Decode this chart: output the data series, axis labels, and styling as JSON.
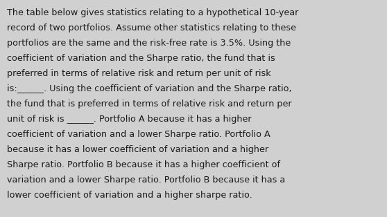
{
  "background_color": "#d0d0d0",
  "text_color": "#1a1a1a",
  "font_size": 9.2,
  "lines": [
    "The table below gives statistics relating to a hypothetical 10-year",
    "record of two portfolios. Assume other statistics relating to these",
    "portfolios are the same and the risk-free rate is 3.5%. Using the",
    "coefficient of variation and the Sharpe ratio, the fund that is",
    "preferred in terms of relative risk and return per unit of risk",
    "is:______. Using the coefficient of variation and the Sharpe ratio,",
    "the fund that is preferred in terms of relative risk and return per",
    "unit of risk is ______. Portfolio A because it has a higher",
    "coefficient of variation and a lower Sharpe ratio. Portfolio A",
    "because it has a lower coefficient of variation and a higher",
    "Sharpe ratio. Portfolio B because it has a higher coefficient of",
    "variation and a lower Sharpe ratio. Portfolio B because it has a",
    "lower coefficient of variation and a higher sharpe ratio."
  ]
}
